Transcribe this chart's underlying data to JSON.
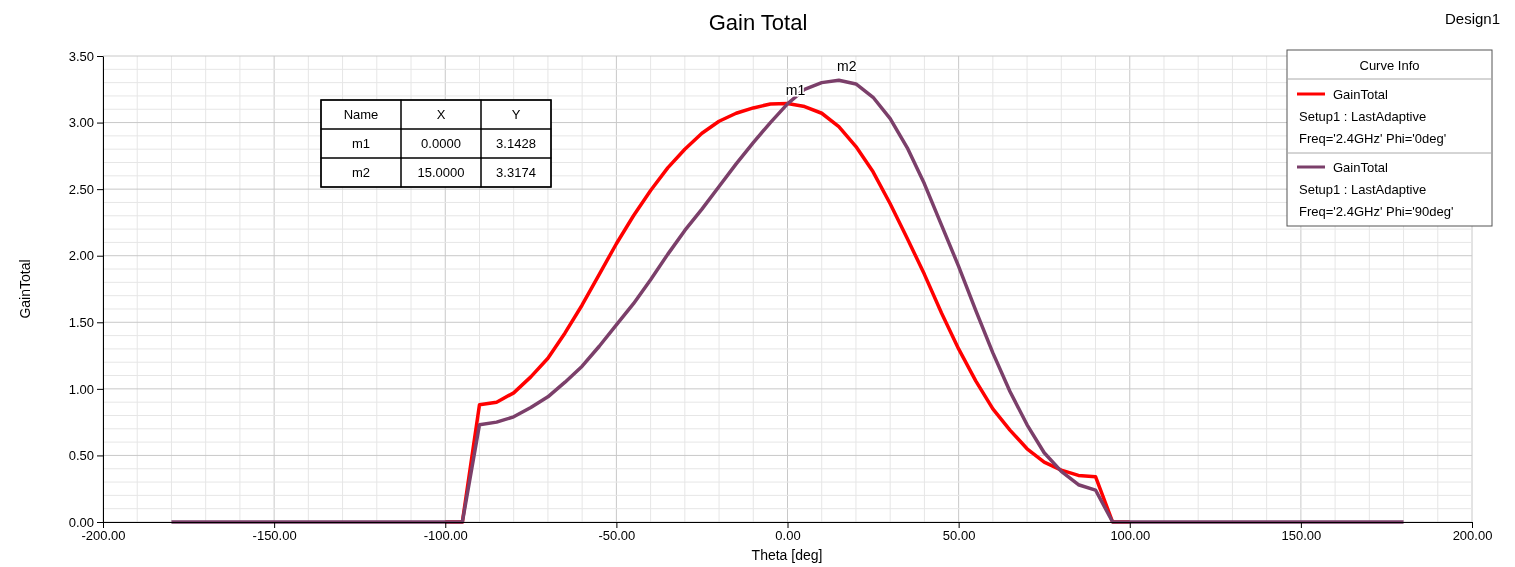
{
  "chart_data": {
    "type": "line",
    "title": "Gain Total",
    "xlabel": "Theta [deg]",
    "ylabel": "GainTotal",
    "legend_title": "Curve Info",
    "legend": "top right",
    "grid": true,
    "line_style": "solid",
    "xlim": [
      -200,
      200
    ],
    "xticks": [
      {
        "value": -200,
        "label": "-200.00"
      },
      {
        "value": -150,
        "label": "-150.00"
      },
      {
        "value": -100,
        "label": "-100.00"
      },
      {
        "value": -50,
        "label": "-50.00"
      },
      {
        "value": 0,
        "label": "0.00"
      },
      {
        "value": 50,
        "label": "50.00"
      },
      {
        "value": 100,
        "label": "100.00"
      },
      {
        "value": 150,
        "label": "150.00"
      },
      {
        "value": 200,
        "label": "200.00"
      }
    ],
    "ylim": [
      0,
      3.5
    ],
    "yticks": [
      {
        "value": 0,
        "label": "0.00"
      },
      {
        "value": 0.5,
        "label": "0.50"
      },
      {
        "value": 1,
        "label": "1.00"
      },
      {
        "value": 1.5,
        "label": "1.50"
      },
      {
        "value": 2,
        "label": "2.00"
      },
      {
        "value": 2.5,
        "label": "2.50"
      },
      {
        "value": 3,
        "label": "3.00"
      },
      {
        "value": 3.5,
        "label": "3.50"
      }
    ],
    "x": [
      -180,
      -175,
      -170,
      -165,
      -160,
      -155,
      -150,
      -145,
      -140,
      -135,
      -130,
      -125,
      -120,
      -115,
      -110,
      -105,
      -100,
      -95,
      -90,
      -85,
      -80,
      -75,
      -70,
      -65,
      -60,
      -55,
      -50,
      -45,
      -40,
      -35,
      -30,
      -25,
      -20,
      -15,
      -10,
      -5,
      0,
      5,
      10,
      15,
      20,
      25,
      30,
      35,
      40,
      45,
      50,
      55,
      60,
      65,
      70,
      75,
      80,
      85,
      90,
      95,
      100,
      105,
      110,
      115,
      120,
      125,
      130,
      135,
      140,
      145,
      150,
      155,
      160,
      165,
      170,
      175,
      180
    ],
    "series": [
      {
        "name": "GainTotal\nSetup1 : LastAdaptive\nFreq='2.4GHz' Phi='0deg'",
        "color": "#ff0000",
        "values": [
          null,
          null,
          null,
          null,
          null,
          null,
          null,
          null,
          null,
          null,
          null,
          null,
          null,
          null,
          null,
          null,
          0,
          0,
          0.88,
          0.9,
          0.97,
          1.09,
          1.23,
          1.42,
          1.63,
          1.86,
          2.09,
          2.3,
          2.49,
          2.66,
          2.8,
          2.92,
          3.01,
          3.07,
          3.11,
          3.14,
          3.1428,
          3.12,
          3.07,
          2.97,
          2.82,
          2.63,
          2.39,
          2.13,
          1.86,
          1.57,
          1.3,
          1.06,
          0.85,
          0.69,
          0.55,
          0.45,
          0.39,
          0.35,
          0.34,
          0,
          0,
          null,
          null,
          null,
          null,
          null,
          null,
          null,
          null,
          null,
          null,
          null,
          null,
          null,
          null,
          null,
          null
        ]
      },
      {
        "name": "GainTotal\nSetup1 : LastAdaptive\nFreq='2.4GHz' Phi='90deg'",
        "color": "#7b3f6a",
        "values": [
          0,
          0,
          0,
          0,
          0,
          0,
          0,
          0,
          0,
          0,
          0,
          0,
          0,
          0,
          0,
          0,
          0,
          0,
          0.73,
          0.75,
          0.79,
          0.86,
          0.94,
          1.05,
          1.17,
          1.32,
          1.48,
          1.64,
          1.82,
          2.01,
          2.19,
          2.35,
          2.52,
          2.69,
          2.85,
          3.0,
          3.14,
          3.25,
          3.3,
          3.3174,
          3.29,
          3.19,
          3.03,
          2.81,
          2.54,
          2.23,
          1.92,
          1.59,
          1.27,
          0.98,
          0.73,
          0.52,
          0.38,
          0.28,
          0.24,
          0,
          0,
          0,
          0,
          0,
          0,
          0,
          0,
          0,
          0,
          0,
          0,
          0,
          0,
          0,
          0,
          0,
          0
        ]
      }
    ],
    "annotations": [
      "Design1",
      {
        "text": "m1",
        "x": 0,
        "y": 3.1428
      },
      {
        "text": "m2",
        "x": 15,
        "y": 3.3174
      },
      "Name",
      "X",
      "Y",
      "m1",
      "0.0000",
      "3.1428",
      "m2",
      "15.0000",
      "3.3174"
    ]
  }
}
